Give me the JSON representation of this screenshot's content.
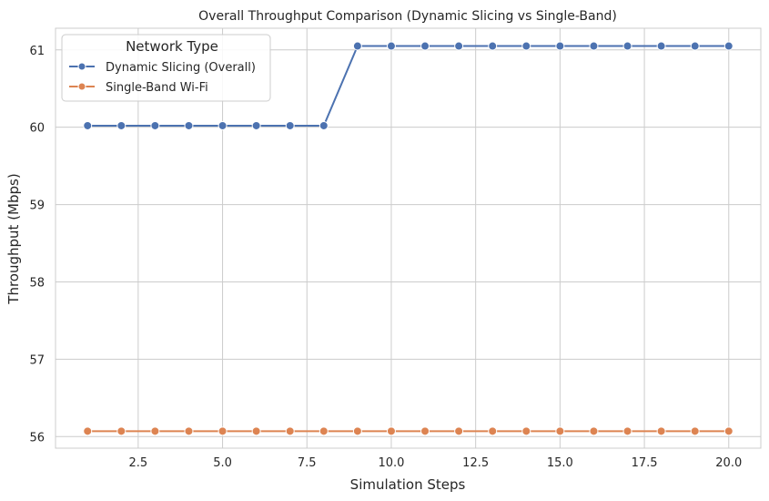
{
  "chart_data": {
    "type": "line",
    "title": "Overall Throughput Comparison (Dynamic Slicing vs Single-Band)",
    "xlabel": "Simulation Steps",
    "ylabel": "Throughput (Mbps)",
    "xlim": [
      0.05,
      20.95
    ],
    "ylim": [
      55.85,
      61.28
    ],
    "xticks": [
      2.5,
      5.0,
      7.5,
      10.0,
      12.5,
      15.0,
      17.5,
      20.0
    ],
    "xtick_labels": [
      "2.5",
      "5.0",
      "7.5",
      "10.0",
      "12.5",
      "15.0",
      "17.5",
      "20.0"
    ],
    "yticks": [
      56,
      57,
      58,
      59,
      60,
      61
    ],
    "ytick_labels": [
      "56",
      "57",
      "58",
      "59",
      "60",
      "61"
    ],
    "grid": true,
    "legend": {
      "title": "Network Type",
      "placement": "top-left"
    },
    "x": [
      1,
      2,
      3,
      4,
      5,
      6,
      7,
      8,
      9,
      10,
      11,
      12,
      13,
      14,
      15,
      16,
      17,
      18,
      19,
      20
    ],
    "series": [
      {
        "name": "Dynamic Slicing (Overall)",
        "color": "#4c72b0",
        "values": [
          60.02,
          60.02,
          60.02,
          60.02,
          60.02,
          60.02,
          60.02,
          60.02,
          61.05,
          61.05,
          61.05,
          61.05,
          61.05,
          61.05,
          61.05,
          61.05,
          61.05,
          61.05,
          61.05,
          61.05
        ]
      },
      {
        "name": "Single-Band Wi-Fi",
        "color": "#dd8452",
        "values": [
          56.07,
          56.07,
          56.07,
          56.07,
          56.07,
          56.07,
          56.07,
          56.07,
          56.07,
          56.07,
          56.07,
          56.07,
          56.07,
          56.07,
          56.07,
          56.07,
          56.07,
          56.07,
          56.07,
          56.07
        ]
      }
    ]
  }
}
